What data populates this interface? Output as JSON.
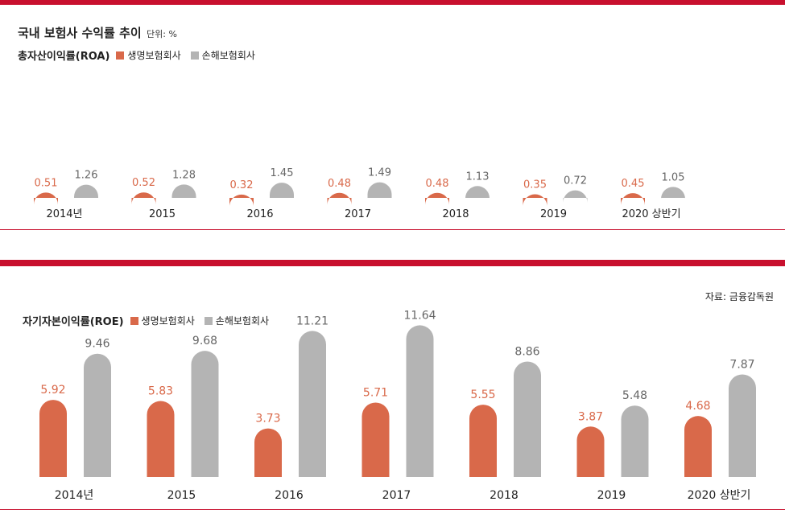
{
  "header": {
    "title": "국내 보험사 수익률 추이",
    "unit": "단위: %"
  },
  "source": "자료: 금융감독원",
  "colors": {
    "life": "#d9694a",
    "nonlife": "#b4b4b4",
    "accent": "#c8102e"
  },
  "chart_data": [
    {
      "type": "bar",
      "title": "총자산이익률(ROA)",
      "categories": [
        "2014년",
        "2015",
        "2016",
        "2017",
        "2018",
        "2019",
        "2020 상반기"
      ],
      "series": [
        {
          "name": "생명보험회사",
          "values": [
            0.51,
            0.52,
            0.32,
            0.48,
            0.48,
            0.35,
            0.45
          ],
          "labels": [
            "0.51",
            "0.52",
            "0.32",
            "0.48",
            "0.48",
            "0.35",
            "0.45"
          ]
        },
        {
          "name": "손해보험회사",
          "values": [
            1.26,
            1.28,
            1.45,
            1.49,
            1.13,
            0.72,
            1.05
          ],
          "labels": [
            "1.26",
            "1.28",
            "1.45",
            "1.49",
            "1.13",
            "0.72",
            "1.05"
          ]
        }
      ]
    },
    {
      "type": "bar",
      "title": "자기자본이익률(ROE)",
      "categories": [
        "2014년",
        "2015",
        "2016",
        "2017",
        "2018",
        "2019",
        "2020 상반기"
      ],
      "series": [
        {
          "name": "생명보험회사",
          "values": [
            5.92,
            5.83,
            3.73,
            5.71,
            5.55,
            3.87,
            4.68
          ],
          "labels": [
            "5.92",
            "5.83",
            "3.73",
            "5.71",
            "5.55",
            "3.87",
            "4.68"
          ]
        },
        {
          "name": "손해보험회사",
          "values": [
            9.46,
            9.68,
            11.21,
            11.64,
            8.86,
            5.48,
            7.87
          ],
          "labels": [
            "9.46",
            "9.68",
            "11.21",
            "11.64",
            "8.86",
            "5.48",
            "7.87"
          ]
        }
      ]
    }
  ]
}
